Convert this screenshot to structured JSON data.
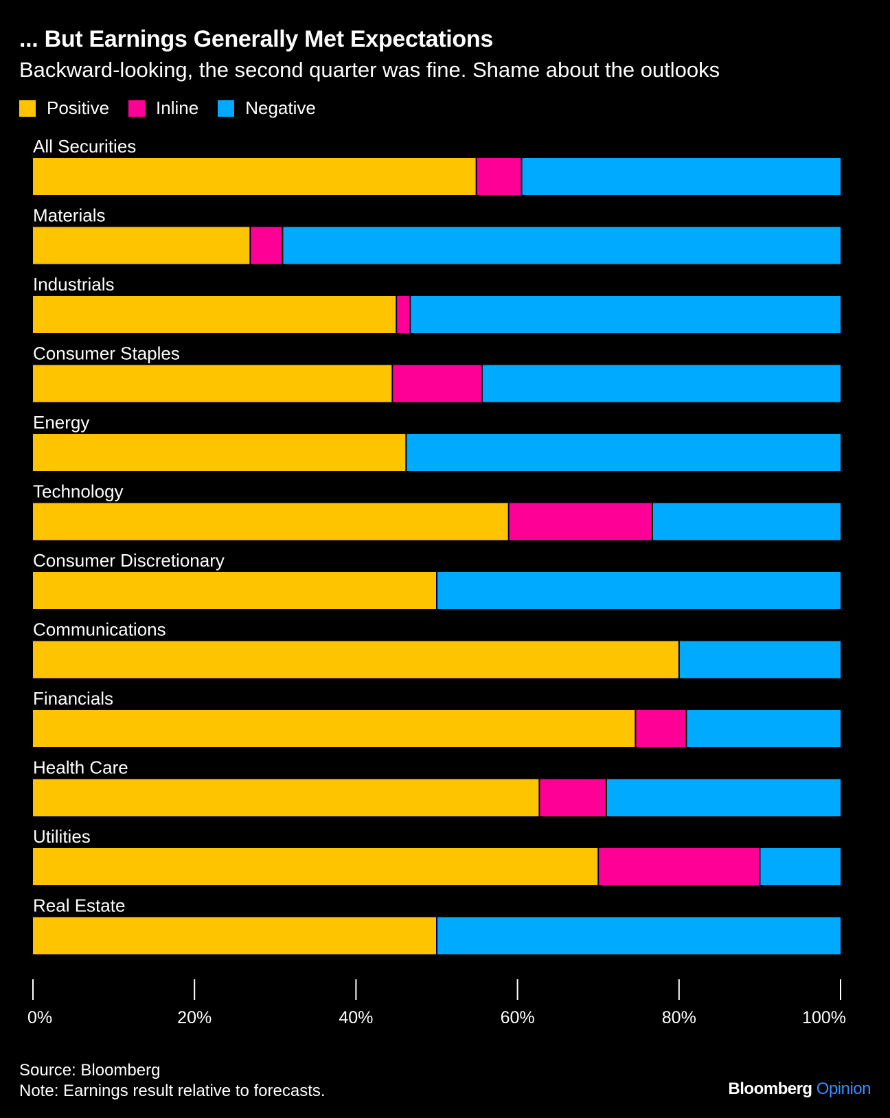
{
  "header": {
    "title": "... But Earnings Generally Met Expectations",
    "subtitle": "Backward-looking, the second quarter was fine. Shame about the outlooks"
  },
  "colors": {
    "Positive": "#ffc400",
    "Inline": "#ff0096",
    "Negative": "#00aaff"
  },
  "chart_data": {
    "type": "bar",
    "orientation": "horizontal",
    "stacked": true,
    "categories": [
      "All Securities",
      "Materials",
      "Industrials",
      "Consumer Staples",
      "Energy",
      "Technology",
      "Consumer Discretionary",
      "Communications",
      "Financials",
      "Health Care",
      "Utilities",
      "Real Estate"
    ],
    "series": [
      {
        "name": "Positive",
        "values": [
          54.9,
          26.9,
          45.0,
          44.5,
          46.2,
          58.9,
          50.0,
          80.0,
          74.6,
          62.7,
          70.0,
          50.0
        ]
      },
      {
        "name": "Inline",
        "values": [
          5.6,
          4.0,
          1.7,
          11.1,
          0.0,
          17.8,
          0.0,
          0.0,
          6.3,
          8.3,
          20.0,
          0.0
        ]
      },
      {
        "name": "Negative",
        "values": [
          39.5,
          69.1,
          53.3,
          44.4,
          53.8,
          23.3,
          50.0,
          20.0,
          19.1,
          29.0,
          10.0,
          50.0
        ]
      }
    ],
    "xlim": [
      0,
      100
    ],
    "x_ticks": [
      "0%",
      "20%",
      "40%",
      "60%",
      "80%",
      "100%"
    ],
    "legend_position": "top-left",
    "grid": false
  },
  "footer": {
    "source": "Source: Bloomberg",
    "note": "Note: Earnings result relative to forecasts.",
    "brand_main": "Bloomberg",
    "brand_sub": "Opinion"
  }
}
